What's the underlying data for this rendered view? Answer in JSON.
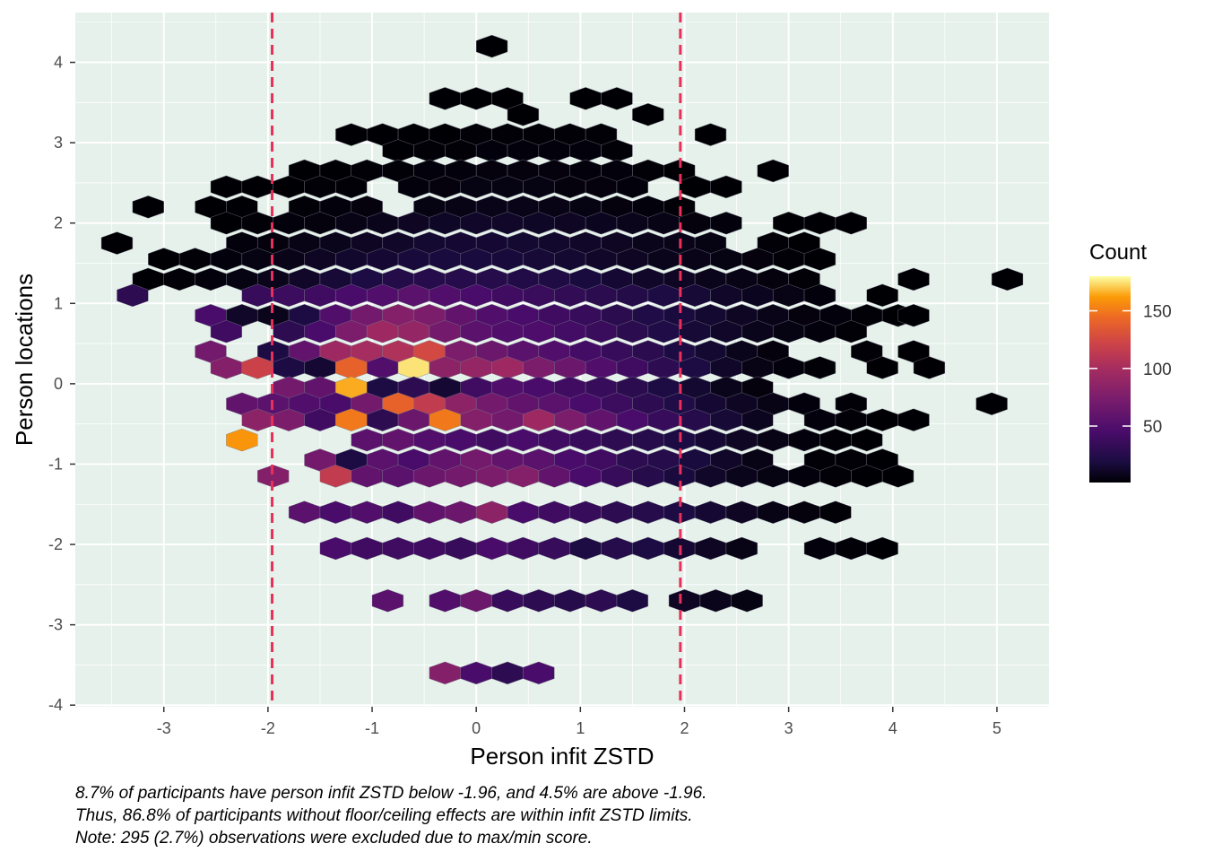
{
  "chart_data": {
    "type": "hexbin",
    "xlabel": "Person infit ZSTD",
    "ylabel": "Person locations",
    "xlim": [
      -3.85,
      5.5
    ],
    "ylim": [
      -4.02,
      4.62
    ],
    "x_ticks": [
      -3,
      -2,
      -1,
      0,
      1,
      2,
      3,
      4,
      5
    ],
    "y_ticks": [
      -4,
      -3,
      -2,
      -1,
      0,
      1,
      2,
      3,
      4
    ],
    "grid": true,
    "panel_background": "#e5f1ea",
    "reference_lines": {
      "x": [
        -1.96,
        1.96
      ],
      "color": "#e8305a",
      "style": "dashed"
    },
    "legend": {
      "title": "Count",
      "position": "right",
      "ticks": [
        50,
        100,
        150
      ],
      "range": [
        1,
        180
      ],
      "colormap": "inferno"
    },
    "hex_size": 0.2,
    "hex_rows": [
      {
        "y": 4.2,
        "xs": [
          0.15
        ],
        "counts": [
          1
        ]
      },
      {
        "y": 3.55,
        "xs": [
          -0.3,
          0.0,
          0.3,
          1.05,
          1.35
        ],
        "counts": [
          1,
          1,
          1,
          1,
          1
        ]
      },
      {
        "y": 3.35,
        "xs": [
          0.45,
          1.65
        ],
        "counts": [
          1,
          1
        ]
      },
      {
        "y": 3.1,
        "xs": [
          -1.2,
          -0.9,
          -0.6,
          -0.3,
          0.0,
          0.3,
          0.6,
          0.9,
          1.2,
          2.25
        ],
        "counts": [
          1,
          1,
          1,
          1,
          2,
          2,
          2,
          2,
          2,
          1
        ]
      },
      {
        "y": 2.9,
        "xs": [
          -0.75,
          -0.45,
          -0.15,
          0.15,
          0.45,
          0.75,
          1.05,
          1.35
        ],
        "counts": [
          1,
          2,
          2,
          3,
          3,
          3,
          3,
          2
        ]
      },
      {
        "y": 2.65,
        "xs": [
          -1.65,
          -1.35,
          -1.05,
          -0.75,
          -0.45,
          -0.15,
          0.15,
          0.45,
          0.75,
          1.05,
          1.35,
          1.65,
          1.95,
          2.85
        ],
        "counts": [
          1,
          1,
          2,
          2,
          3,
          3,
          4,
          4,
          4,
          3,
          3,
          2,
          1,
          1
        ]
      },
      {
        "y": 2.45,
        "xs": [
          -2.4,
          -2.1,
          -1.8,
          -1.5,
          -1.2,
          -0.6,
          -0.3,
          0.0,
          0.3,
          0.6,
          0.9,
          1.2,
          1.5,
          2.1,
          2.4
        ],
        "counts": [
          1,
          1,
          1,
          2,
          2,
          3,
          4,
          5,
          5,
          5,
          4,
          4,
          3,
          1,
          1
        ]
      },
      {
        "y": 2.2,
        "xs": [
          -3.15,
          -2.55,
          -2.25,
          -1.65,
          -1.35,
          -1.05,
          -0.45,
          -0.15,
          0.15,
          0.45,
          0.75,
          1.05,
          1.35,
          1.65,
          1.95
        ],
        "counts": [
          1,
          1,
          1,
          2,
          3,
          4,
          5,
          6,
          7,
          7,
          6,
          5,
          4,
          3,
          2
        ]
      },
      {
        "y": 2.0,
        "xs": [
          -2.4,
          -2.1,
          -1.8,
          -1.5,
          -1.2,
          -0.9,
          -0.6,
          -0.3,
          0.0,
          0.3,
          0.6,
          0.9,
          1.2,
          1.5,
          1.8,
          2.1,
          2.4,
          3.0,
          3.3,
          3.6
        ],
        "counts": [
          1,
          2,
          3,
          4,
          6,
          8,
          10,
          11,
          12,
          12,
          11,
          10,
          9,
          8,
          6,
          4,
          3,
          1,
          1,
          1
        ]
      },
      {
        "y": 1.75,
        "xs": [
          -3.45,
          -2.25,
          -1.95,
          -1.65,
          -1.35,
          -1.05,
          -0.75,
          -0.45,
          -0.15,
          0.15,
          0.45,
          0.75,
          1.05,
          1.35,
          1.65,
          1.95,
          2.25,
          2.85,
          3.15
        ],
        "counts": [
          1,
          3,
          4,
          6,
          8,
          10,
          12,
          14,
          15,
          15,
          14,
          13,
          12,
          10,
          8,
          7,
          5,
          2,
          1
        ]
      },
      {
        "y": 1.55,
        "xs": [
          -3.0,
          -2.7,
          -2.4,
          -2.1,
          -1.8,
          -1.5,
          -1.2,
          -0.9,
          -0.6,
          -0.3,
          0.0,
          0.3,
          0.6,
          0.9,
          1.2,
          1.5,
          1.8,
          2.1,
          2.4,
          2.7,
          3.0,
          3.3
        ],
        "counts": [
          1,
          2,
          3,
          5,
          7,
          10,
          13,
          15,
          17,
          18,
          18,
          17,
          16,
          14,
          12,
          10,
          8,
          7,
          5,
          4,
          2,
          1
        ]
      },
      {
        "y": 1.3,
        "xs": [
          -3.15,
          -2.85,
          -2.55,
          -2.25,
          -1.95,
          -1.65,
          -1.35,
          -1.05,
          -0.75,
          -0.45,
          -0.15,
          0.15,
          0.45,
          0.75,
          1.05,
          1.35,
          1.65,
          1.95,
          2.25,
          2.55,
          2.85,
          3.15,
          4.2,
          5.1
        ],
        "counts": [
          1,
          2,
          3,
          5,
          8,
          12,
          16,
          20,
          24,
          26,
          26,
          25,
          23,
          21,
          18,
          15,
          12,
          10,
          8,
          6,
          4,
          2,
          1,
          1
        ]
      },
      {
        "y": 1.1,
        "xs": [
          -3.3,
          -2.1,
          -1.8,
          -1.5,
          -1.2,
          -0.9,
          -0.6,
          -0.3,
          0.0,
          0.3,
          0.6,
          0.9,
          1.2,
          1.5,
          1.8,
          2.1,
          2.4,
          2.7,
          3.0,
          3.3,
          3.9
        ],
        "counts": [
          30,
          35,
          38,
          40,
          45,
          50,
          55,
          50,
          45,
          40,
          36,
          32,
          28,
          24,
          20,
          16,
          12,
          9,
          6,
          3,
          1
        ]
      },
      {
        "y": 0.85,
        "xs": [
          -2.55,
          -2.25,
          -1.95,
          -1.65,
          -1.35,
          -1.05,
          -0.75,
          -0.45,
          -0.15,
          0.15,
          0.45,
          0.75,
          1.05,
          1.35,
          1.65,
          1.95,
          2.25,
          2.55,
          2.85,
          3.15,
          3.45,
          3.75,
          4.05,
          4.2
        ],
        "counts": [
          45,
          12,
          8,
          20,
          50,
          70,
          80,
          75,
          60,
          50,
          45,
          40,
          35,
          28,
          22,
          18,
          14,
          10,
          7,
          4,
          3,
          2,
          1,
          1
        ]
      },
      {
        "y": 0.65,
        "xs": [
          -2.4,
          -1.8,
          -1.5,
          -1.2,
          -0.9,
          -0.6,
          -0.3,
          0.0,
          0.3,
          0.6,
          0.9,
          1.2,
          1.5,
          1.8,
          2.1,
          2.4,
          2.7,
          3.0,
          3.3,
          3.6
        ],
        "counts": [
          40,
          30,
          45,
          75,
          95,
          90,
          70,
          55,
          50,
          48,
          42,
          36,
          28,
          22,
          16,
          12,
          8,
          5,
          3,
          2
        ]
      },
      {
        "y": 0.4,
        "xs": [
          -2.55,
          -1.95,
          -1.65,
          -1.35,
          -1.05,
          -0.75,
          -0.45,
          -0.15,
          0.15,
          0.45,
          0.75,
          1.05,
          1.35,
          1.65,
          1.95,
          2.25,
          2.55,
          2.85,
          3.75,
          4.2
        ],
        "counts": [
          70,
          20,
          60,
          95,
          100,
          105,
          125,
          75,
          65,
          55,
          50,
          42,
          35,
          28,
          20,
          14,
          8,
          4,
          2,
          1
        ]
      },
      {
        "y": 0.2,
        "xs": [
          -2.4,
          -2.1,
          -1.8,
          -1.5,
          -1.2,
          -0.9,
          -0.6,
          -0.3,
          0.0,
          0.3,
          0.6,
          0.9,
          1.2,
          1.5,
          1.8,
          2.1,
          2.4,
          2.7,
          3.0,
          3.3,
          3.9,
          4.35
        ],
        "counts": [
          80,
          120,
          20,
          15,
          140,
          50,
          175,
          85,
          90,
          95,
          75,
          65,
          50,
          40,
          30,
          20,
          12,
          6,
          3,
          2,
          1,
          1
        ]
      },
      {
        "y": -0.05,
        "xs": [
          -1.8,
          -1.5,
          -1.2,
          -0.9,
          -0.6,
          -0.3,
          0.0,
          0.3,
          0.6,
          0.9,
          1.2,
          1.5,
          1.8,
          2.1,
          2.4,
          2.7
        ],
        "counts": [
          70,
          60,
          165,
          20,
          30,
          15,
          40,
          50,
          45,
          40,
          35,
          28,
          20,
          14,
          8,
          4
        ]
      },
      {
        "y": -0.25,
        "xs": [
          -2.25,
          -1.95,
          -1.65,
          -1.35,
          -1.05,
          -0.75,
          -0.45,
          -0.15,
          0.15,
          0.45,
          0.75,
          1.05,
          1.35,
          1.65,
          1.95,
          2.25,
          2.55,
          2.85,
          3.15,
          3.6,
          4.95
        ],
        "counts": [
          60,
          55,
          50,
          45,
          70,
          140,
          115,
          85,
          70,
          60,
          55,
          45,
          38,
          30,
          22,
          15,
          10,
          6,
          3,
          2,
          1
        ]
      },
      {
        "y": -0.45,
        "xs": [
          -2.1,
          -1.8,
          -1.5,
          -1.2,
          -0.9,
          -0.6,
          -0.3,
          0.0,
          0.3,
          0.6,
          0.9,
          1.2,
          1.5,
          1.8,
          2.1,
          2.4,
          2.7,
          3.3,
          3.6,
          3.9,
          4.2
        ],
        "counts": [
          85,
          75,
          40,
          150,
          30,
          65,
          150,
          80,
          70,
          95,
          75,
          60,
          45,
          35,
          25,
          16,
          9,
          3,
          2,
          1,
          1
        ]
      },
      {
        "y": -0.7,
        "xs": [
          -2.25,
          -1.05,
          -0.75,
          -0.45,
          -0.15,
          0.15,
          0.45,
          0.75,
          1.05,
          1.35,
          1.65,
          1.95,
          2.25,
          2.55,
          2.85,
          3.15,
          3.45,
          3.75
        ],
        "counts": [
          160,
          55,
          60,
          50,
          45,
          40,
          45,
          40,
          35,
          30,
          25,
          20,
          15,
          10,
          6,
          3,
          2,
          1
        ]
      },
      {
        "y": -0.95,
        "xs": [
          -1.5,
          -1.2,
          -0.9,
          -0.6,
          -0.3,
          0.0,
          0.3,
          0.6,
          0.9,
          1.2,
          1.5,
          1.8,
          2.1,
          2.4,
          2.7,
          3.3,
          3.6,
          3.9
        ],
        "counts": [
          70,
          20,
          55,
          45,
          60,
          70,
          60,
          55,
          45,
          40,
          30,
          25,
          18,
          12,
          6,
          2,
          2,
          1
        ]
      },
      {
        "y": -1.15,
        "xs": [
          -1.95,
          -1.35,
          -1.05,
          -0.75,
          -0.45,
          -0.15,
          0.15,
          0.45,
          0.75,
          1.05,
          1.35,
          1.65,
          1.95,
          2.25,
          2.55,
          2.85,
          3.15,
          3.45,
          3.75,
          4.05
        ],
        "counts": [
          80,
          115,
          60,
          55,
          65,
          70,
          75,
          80,
          60,
          45,
          35,
          25,
          18,
          12,
          8,
          5,
          3,
          2,
          1,
          1
        ]
      },
      {
        "y": -1.6,
        "xs": [
          -1.65,
          -1.35,
          -1.05,
          -0.75,
          -0.45,
          -0.15,
          0.15,
          0.45,
          0.75,
          1.05,
          1.35,
          1.65,
          1.95,
          2.25,
          2.55,
          2.85,
          3.15,
          3.45
        ],
        "counts": [
          55,
          45,
          50,
          40,
          60,
          65,
          85,
          45,
          40,
          35,
          30,
          25,
          20,
          15,
          10,
          6,
          4,
          2
        ]
      },
      {
        "y": -2.05,
        "xs": [
          -1.35,
          -1.05,
          -0.75,
          -0.45,
          -0.15,
          0.15,
          0.45,
          0.75,
          1.05,
          1.35,
          1.65,
          1.95,
          2.25,
          2.55,
          3.3,
          3.6,
          3.9
        ],
        "counts": [
          45,
          40,
          40,
          40,
          35,
          45,
          40,
          35,
          20,
          25,
          20,
          15,
          10,
          6,
          3,
          2,
          1
        ]
      },
      {
        "y": -2.7,
        "xs": [
          -0.85,
          -0.3,
          0.0,
          0.3,
          0.6,
          0.9,
          1.2,
          1.5,
          2.0,
          2.3,
          2.6
        ],
        "counts": [
          55,
          50,
          65,
          35,
          30,
          25,
          30,
          20,
          10,
          8,
          5
        ]
      },
      {
        "y": -3.6,
        "xs": [
          -0.3,
          0.0,
          0.3,
          0.6
        ],
        "counts": [
          80,
          45,
          30,
          45
        ]
      }
    ]
  },
  "caption": {
    "line1": "8.7% of participants have person infit ZSTD below -1.96, and 4.5% are above -1.96.",
    "line2": "Thus, 86.8% of participants without floor/ceiling effects are within infit ZSTD limits.",
    "line3": "Note: 295 (2.7%) observations were excluded due to max/min score."
  }
}
